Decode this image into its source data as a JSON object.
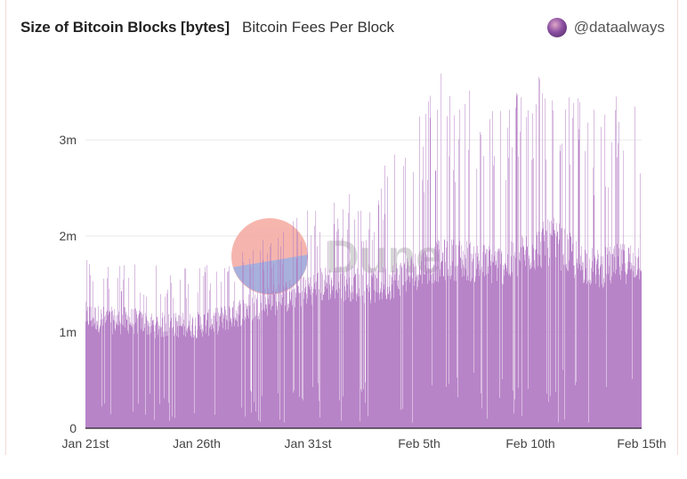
{
  "header": {
    "title": "Size of Bitcoin Blocks [bytes]",
    "subtitle": "Bitcoin Fees Per Block",
    "author": "@dataalways"
  },
  "watermark": {
    "text": "Dune"
  },
  "colors": {
    "bars": "#b27bc3",
    "axis": "#222222",
    "grid": "#e9e9e9",
    "watermark_red": "#f4a9a0",
    "watermark_blue": "#9aa3d6",
    "watermark_text": "#cfcfcf"
  },
  "chart_data": {
    "type": "bar",
    "title": "Size of Bitcoin Blocks [bytes]",
    "xlabel": "",
    "ylabel": "",
    "ylim": [
      0,
      3900000
    ],
    "yticks": [
      {
        "value": 0,
        "label": "0"
      },
      {
        "value": 1000000,
        "label": "1m"
      },
      {
        "value": 2000000,
        "label": "2m"
      },
      {
        "value": 3000000,
        "label": "3m"
      }
    ],
    "xrange_days": [
      0,
      25
    ],
    "xticks": [
      {
        "day": 0,
        "label": "Jan 21st"
      },
      {
        "day": 5,
        "label": "Jan 26th"
      },
      {
        "day": 10,
        "label": "Jan 31st"
      },
      {
        "day": 15,
        "label": "Feb 5th"
      },
      {
        "day": 20,
        "label": "Feb 10th"
      },
      {
        "day": 25,
        "label": "Feb 15th"
      }
    ],
    "series": [
      {
        "daily_profile": [
          {
            "date": "Jan 21",
            "base": 1200000,
            "peak": 1800000
          },
          {
            "date": "Jan 22",
            "base": 1150000,
            "peak": 1700000
          },
          {
            "date": "Jan 23",
            "base": 1150000,
            "peak": 1750000
          },
          {
            "date": "Jan 24",
            "base": 1100000,
            "peak": 1700000
          },
          {
            "date": "Jan 25",
            "base": 1100000,
            "peak": 1700000
          },
          {
            "date": "Jan 26",
            "base": 1100000,
            "peak": 1750000
          },
          {
            "date": "Jan 27",
            "base": 1150000,
            "peak": 1750000
          },
          {
            "date": "Jan 28",
            "base": 1250000,
            "peak": 1900000
          },
          {
            "date": "Jan 29",
            "base": 1350000,
            "peak": 2050000
          },
          {
            "date": "Jan 30",
            "base": 1400000,
            "peak": 2100000
          },
          {
            "date": "Jan 31",
            "base": 1500000,
            "peak": 2300000
          },
          {
            "date": "Feb 01",
            "base": 1550000,
            "peak": 2400000
          },
          {
            "date": "Feb 02",
            "base": 1550000,
            "peak": 2500000
          },
          {
            "date": "Feb 03",
            "base": 1500000,
            "peak": 2600000
          },
          {
            "date": "Feb 04",
            "base": 1600000,
            "peak": 3200000
          },
          {
            "date": "Feb 05",
            "base": 1700000,
            "peak": 3500000
          },
          {
            "date": "Feb 06",
            "base": 1800000,
            "peak": 3700000
          },
          {
            "date": "Feb 07",
            "base": 1800000,
            "peak": 3700000
          },
          {
            "date": "Feb 08",
            "base": 1750000,
            "peak": 3600000
          },
          {
            "date": "Feb 09",
            "base": 1750000,
            "peak": 3500000
          },
          {
            "date": "Feb 10",
            "base": 1900000,
            "peak": 3800000
          },
          {
            "date": "Feb 11",
            "base": 2000000,
            "peak": 3800000
          },
          {
            "date": "Feb 12",
            "base": 1800000,
            "peak": 3500000
          },
          {
            "date": "Feb 13",
            "base": 1700000,
            "peak": 3300000
          },
          {
            "date": "Feb 14",
            "base": 1750000,
            "peak": 3500000
          },
          {
            "date": "Feb 15",
            "base": 1800000,
            "peak": 3700000
          }
        ]
      }
    ],
    "grid": true,
    "legend": "none"
  }
}
